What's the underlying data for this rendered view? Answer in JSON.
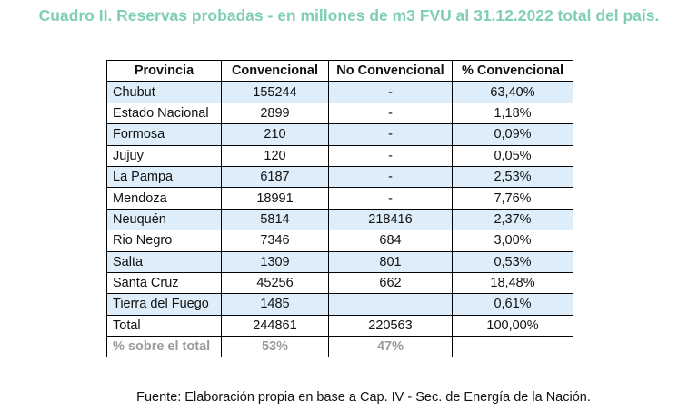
{
  "title": "Cuadro II. Reservas probadas - en millones de m3 FVU al 31.12.2022 total del país.",
  "table": {
    "headers": [
      "Provincia",
      "Convencional",
      "No Convencional",
      "% Convencional"
    ],
    "rows": [
      [
        "Chubut",
        "155244",
        "-",
        "63,40%"
      ],
      [
        "Estado Nacional",
        "2899",
        "-",
        "1,18%"
      ],
      [
        "Formosa",
        "210",
        "-",
        "0,09%"
      ],
      [
        "Jujuy",
        "120",
        "-",
        "0,05%"
      ],
      [
        "La Pampa",
        "6187",
        "-",
        "2,53%"
      ],
      [
        "Mendoza",
        "18991",
        "-",
        "7,76%"
      ],
      [
        "Neuquén",
        "5814",
        "218416",
        "2,37%"
      ],
      [
        "Rio Negro",
        "7346",
        "684",
        "3,00%"
      ],
      [
        "Salta",
        "1309",
        "801",
        "0,53%"
      ],
      [
        "Santa Cruz",
        "45256",
        "662",
        "18,48%"
      ],
      [
        "Tierra del Fuego",
        "1485",
        null,
        "0,61%"
      ]
    ],
    "total": [
      "Total",
      "244861",
      "220563",
      "100,00%"
    ],
    "share": [
      "% sobre el total",
      "53%",
      "47%",
      null
    ]
  },
  "footer": "Fuente: Elaboración propia en base a Cap. IV -  Sec. de Energía de la Nación."
}
